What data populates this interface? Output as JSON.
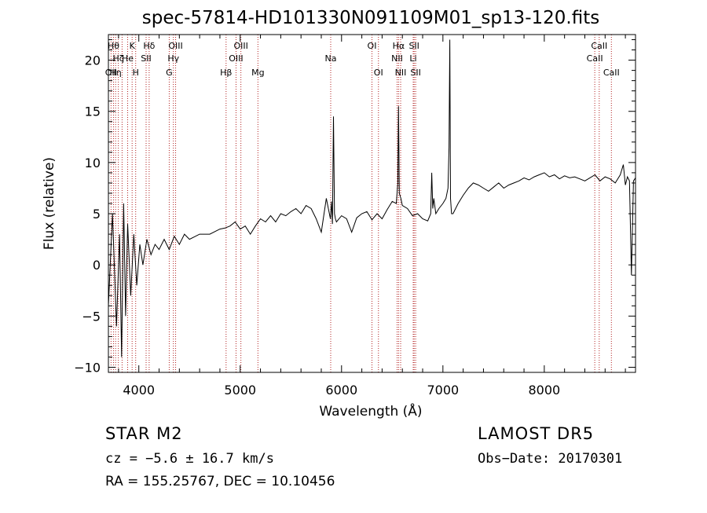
{
  "chart_data": {
    "type": "line",
    "title": "spec-57814-HD101330N091109M01_sp13-120.fits",
    "xlabel": "Wavelength (Å)",
    "ylabel": "Flux (relative)",
    "xlim": [
      3700,
      8900
    ],
    "ylim": [
      -10.5,
      22.5
    ],
    "xticks": [
      4000,
      5000,
      6000,
      7000,
      8000
    ],
    "yticks": [
      -10,
      -5,
      0,
      5,
      10,
      15,
      20
    ],
    "xtick_labels": [
      "4000",
      "5000",
      "6000",
      "7000",
      "8000"
    ],
    "ytick_labels": [
      "−10",
      "−5",
      "0",
      "5",
      "10",
      "15",
      "20"
    ],
    "grid": false,
    "series": [
      {
        "x": [
          3700,
          3740,
          3780,
          3810,
          3830,
          3850,
          3870,
          3890,
          3920,
          3950,
          3980,
          4010,
          4040,
          4080,
          4120,
          4160,
          4200,
          4250,
          4300,
          4350,
          4400,
          4450,
          4500,
          4600,
          4700,
          4800,
          4850,
          4900,
          4950,
          5000,
          5050,
          5100,
          5150,
          5200,
          5250,
          5300,
          5350,
          5400,
          5450,
          5500,
          5550,
          5600,
          5650,
          5700,
          5750,
          5800,
          5850,
          5890,
          5900,
          5910,
          5920,
          5930,
          5940,
          5950,
          6000,
          6050,
          6100,
          6150,
          6200,
          6250,
          6300,
          6350,
          6400,
          6450,
          6500,
          6540,
          6555,
          6562,
          6570,
          6585,
          6600,
          6650,
          6700,
          6750,
          6800,
          6850,
          6880,
          6890,
          6900,
          6910,
          6930,
          6960,
          7000,
          7030,
          7050,
          7060,
          7068,
          7075,
          7085,
          7100,
          7150,
          7200,
          7250,
          7300,
          7350,
          7400,
          7450,
          7500,
          7550,
          7600,
          7650,
          7700,
          7750,
          7800,
          7850,
          7900,
          7950,
          8000,
          8050,
          8100,
          8150,
          8200,
          8250,
          8300,
          8350,
          8400,
          8450,
          8500,
          8550,
          8600,
          8650,
          8700,
          8750,
          8780,
          8800,
          8820,
          8840,
          8860,
          8880,
          8900
        ],
        "y": [
          -4,
          5,
          -6,
          3,
          -9,
          6,
          -5,
          4,
          -3,
          3,
          -2,
          2,
          0,
          2.5,
          1,
          2,
          1.5,
          2.5,
          1.5,
          2.8,
          2,
          3,
          2.5,
          3,
          3,
          3.5,
          3.6,
          3.8,
          4.2,
          3.5,
          3.8,
          3,
          3.8,
          4.5,
          4.2,
          4.8,
          4.2,
          5,
          4.8,
          5.2,
          5.5,
          5,
          5.8,
          5.5,
          4.5,
          3.2,
          6.5,
          4.5,
          6.2,
          4,
          14.5,
          5,
          4.5,
          4.2,
          4.8,
          4.5,
          3.2,
          4.6,
          5,
          5.2,
          4.4,
          5,
          4.5,
          5.4,
          6.2,
          6,
          8,
          15.5,
          7,
          6.5,
          5.8,
          5.5,
          4.8,
          5,
          4.5,
          4.3,
          5,
          9,
          5.5,
          6.5,
          5,
          5.5,
          6,
          6.5,
          7.5,
          11.5,
          22,
          6.5,
          5,
          5,
          6,
          6.8,
          7.5,
          8,
          7.8,
          7.5,
          7.2,
          7.6,
          8,
          7.5,
          7.8,
          8,
          8.2,
          8.5,
          8.3,
          8.6,
          8.8,
          9,
          8.6,
          8.8,
          8.4,
          8.7,
          8.5,
          8.6,
          8.4,
          8.2,
          8.5,
          8.8,
          8.2,
          8.6,
          8.4,
          8,
          8.8,
          9.8,
          7.8,
          8.6,
          8.2,
          -1,
          8.2,
          8.5
        ]
      }
    ],
    "lines": [
      {
        "x": 3750,
        "label": "Hθ",
        "row": 1
      },
      {
        "x": 3726,
        "label": "OII",
        "row": 3
      },
      {
        "x": 3771,
        "label": "Hη",
        "row": 3
      },
      {
        "x": 3798,
        "label": "Hζ",
        "row": 2
      },
      {
        "x": 3835,
        "label": "",
        "row": 0
      },
      {
        "x": 3890,
        "label": "He",
        "row": 2
      },
      {
        "x": 3934,
        "label": "K",
        "row": 1
      },
      {
        "x": 3969,
        "label": "H",
        "row": 3
      },
      {
        "x": 4072,
        "label": "SII",
        "row": 2
      },
      {
        "x": 4102,
        "label": "Hδ",
        "row": 1
      },
      {
        "x": 4300,
        "label": "G",
        "row": 3
      },
      {
        "x": 4341,
        "label": "Hγ",
        "row": 2
      },
      {
        "x": 4363,
        "label": "OIII",
        "row": 1
      },
      {
        "x": 4861,
        "label": "Hβ",
        "row": 3
      },
      {
        "x": 4959,
        "label": "OIII",
        "row": 2
      },
      {
        "x": 5007,
        "label": "OIII",
        "row": 1
      },
      {
        "x": 5175,
        "label": "Mg",
        "row": 3
      },
      {
        "x": 5893,
        "label": "Na",
        "row": 2
      },
      {
        "x": 6300,
        "label": "OI",
        "row": 1
      },
      {
        "x": 6364,
        "label": "OI",
        "row": 3
      },
      {
        "x": 6548,
        "label": "NII",
        "row": 2
      },
      {
        "x": 6563,
        "label": "Hα",
        "row": 1
      },
      {
        "x": 6583,
        "label": "NII",
        "row": 3
      },
      {
        "x": 6707,
        "label": "Li",
        "row": 2
      },
      {
        "x": 6716,
        "label": "SII",
        "row": 1
      },
      {
        "x": 6731,
        "label": "SII",
        "row": 3
      },
      {
        "x": 8498,
        "label": "CaII",
        "row": 2
      },
      {
        "x": 8542,
        "label": "CaII",
        "row": 1
      },
      {
        "x": 8662,
        "label": "CaII",
        "row": 3
      }
    ]
  },
  "footer": {
    "class_line": "STAR     M2",
    "survey": "LAMOST  DR5",
    "cz": "cz = −5.6 ± 16.7 km/s",
    "obs_date": "Obs−Date: 20170301",
    "radec": "RA = 155.25767, DEC =  10.10456"
  },
  "colors": {
    "line_marker": "#b22222",
    "spectrum": "#000000",
    "background": "#ffffff"
  }
}
